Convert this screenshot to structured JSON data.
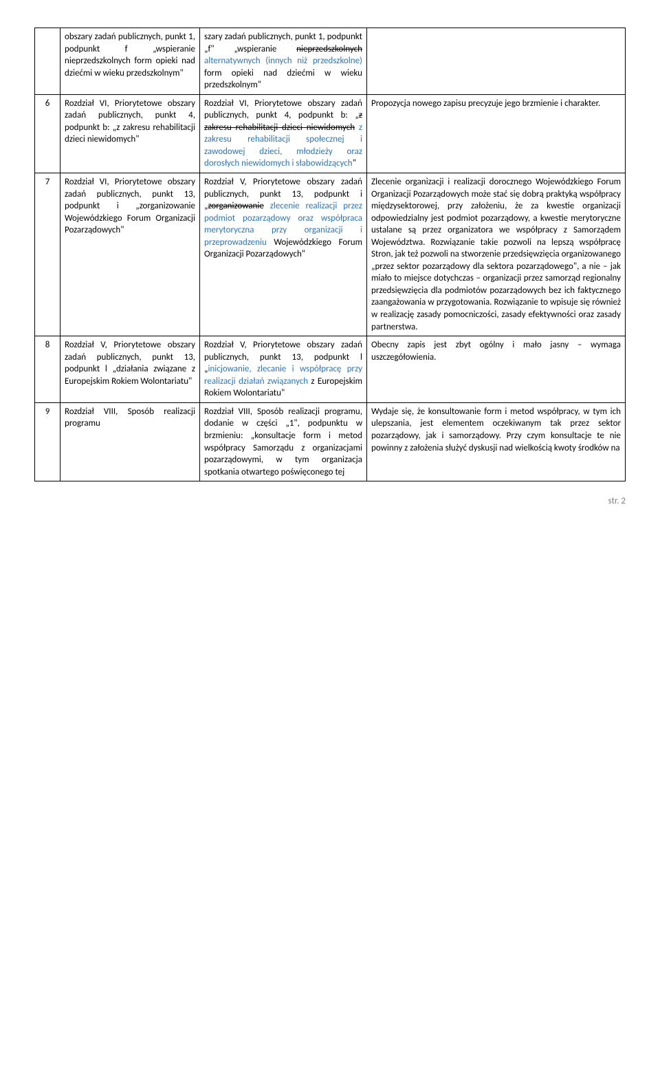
{
  "rows": [
    {
      "num": "",
      "c1": "obszary zadań publicznych, punkt 1, podpunkt f „wspieranie nieprzedszkolnych form opieki nad dziećmi w wieku przedszkolnym\"",
      "c2_parts": [
        {
          "t": "szary zadań publicznych, punkt 1, podpunkt „f\" „wspieranie "
        },
        {
          "t": "nieprzedszkolnych",
          "strike": true
        },
        {
          "t": " "
        },
        {
          "t": "alternatywnych (innych niż przedszkolne)",
          "blue": true
        },
        {
          "t": " form opieki nad dziećmi w wieku przedszkolnym\""
        }
      ],
      "c3": ""
    },
    {
      "num": "6",
      "c1": "Rozdział VI, Priorytetowe obszary zadań publicznych, punkt 4, podpunkt b: „z zakresu rehabilitacji dzieci niewidomych\"",
      "c2_parts": [
        {
          "t": "Rozdział VI, Priorytetowe obszary zadań publicznych, punkt 4, podpunkt b: „"
        },
        {
          "t": "z zakresu rehabilitacji dzieci niewidomych",
          "strike": true
        },
        {
          "t": " "
        },
        {
          "t": "z zakresu rehabilitacji społecznej i zawodowej dzieci, młodzieży oraz dorosłych niewidomych i słabowidzących",
          "blue": true
        },
        {
          "t": "\""
        }
      ],
      "c3": "Propozycja nowego zapisu precyzuje jego brzmienie i charakter."
    },
    {
      "num": "7",
      "c1": "Rozdział VI, Priorytetowe obszary zadań publicznych, punkt 13, podpunkt i „zorganizowanie Wojewódzkiego Forum Organizacji Pozarządowych\"",
      "c2_parts": [
        {
          "t": "Rozdział V, Priorytetowe obszary zadań publicznych, punkt 13, podpunkt i „"
        },
        {
          "t": "zorganizowanie",
          "strike": true
        },
        {
          "t": " "
        },
        {
          "t": "zlecenie realizacji przez podmiot pozarządowy oraz współpraca merytoryczna przy organizacji i przeprowadzeniu",
          "blue": true
        },
        {
          "t": " Wojewódzkiego Forum Organizacji Pozarządowych\""
        }
      ],
      "c3": "Zlecenie organizacji i realizacji dorocznego Wojewódzkiego Forum Organizacji Pozarządowych może stać się dobrą praktyką współpracy międzysektorowej, przy założeniu, że za kwestie organizacji odpowiedzialny jest podmiot pozarządowy, a kwestie merytoryczne ustalane są przez organizatora we współpracy z Samorządem Województwa. Rozwiązanie takie pozwoli na lepszą współpracę Stron, jak też pozwoli na stworzenie przedsięwzięcia organizowanego „przez sektor pozarządowy dla sektora pozarządowego\", a nie – jak miało to miejsce dotychczas – organizacji przez samorząd regionalny przedsięwzięcia dla podmiotów pozarządowych bez ich faktycznego zaangażowania w przygotowania. Rozwiązanie to wpisuje się również w realizację zasady pomocniczości, zasady efektywności oraz zasady partnerstwa."
    },
    {
      "num": "8",
      "c1": "Rozdział V, Priorytetowe obszary zadań publicznych, punkt 13, podpunkt l „działania związane z Europejskim Rokiem Wolontariatu\"",
      "c2_parts": [
        {
          "t": "Rozdział V, Priorytetowe obszary zadań publicznych, punkt 13, podpunkt l „"
        },
        {
          "t": "inicjowanie, zlecanie i współpracę przy realizacji działań związanych",
          "blue": true
        },
        {
          "t": " z Europejskim Rokiem Wolontariatu\""
        }
      ],
      "c3": "Obecny zapis jest zbyt ogólny i mało jasny – wymaga uszczegółowienia."
    },
    {
      "num": "9",
      "c1": "Rozdział VIII, Sposób realizacji programu",
      "c2_parts": [
        {
          "t": "Rozdział VIII, Sposób realizacji programu, dodanie w części „1\", podpunktu w brzmieniu: „konsultacje form i metod współpracy Samorządu z organizacjami pozarządowymi, w tym organizacja spotkania otwartego poświęconego tej"
        }
      ],
      "c3": "Wydaje się, że konsultowanie form i metod współpracy, w tym ich ulepszania, jest elementem oczekiwanym tak przez sektor pozarządowy, jak i samorządowy. Przy czym konsultacje te nie powinny z założenia służyć dyskusji nad wielkością kwoty środków na"
    }
  ],
  "footer": "str. 2"
}
